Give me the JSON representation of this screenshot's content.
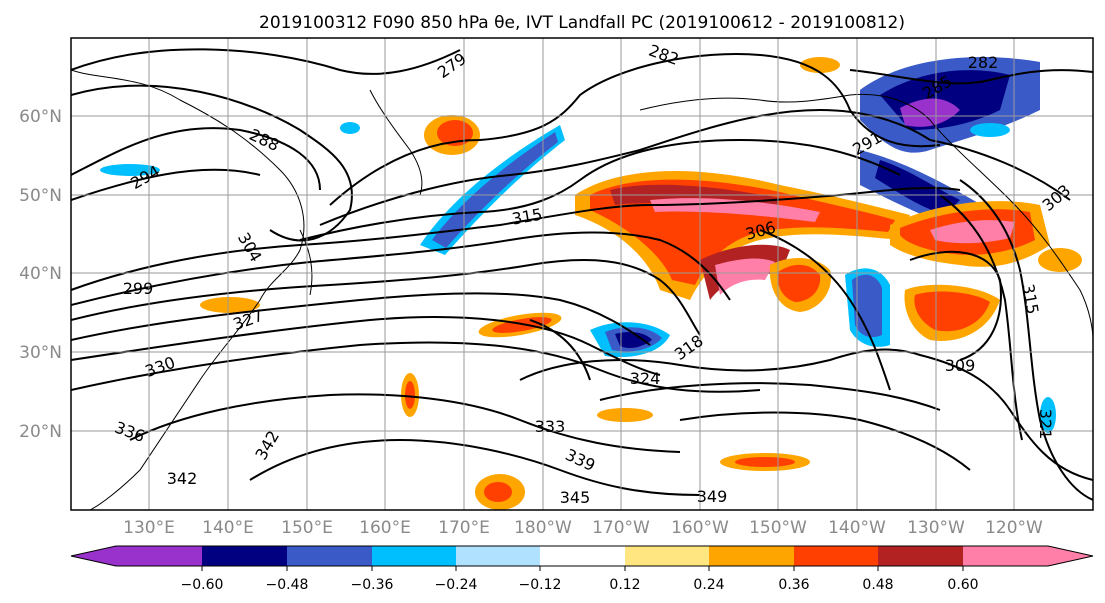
{
  "title": "2019100312 F090 850 hPa θe, IVT Landfall PC (2019100612 - 2019100812)",
  "map": {
    "lat_labels": [
      "60°N",
      "50°N",
      "40°N",
      "30°N",
      "20°N"
    ],
    "lon_labels": [
      "130°E",
      "140°E",
      "150°E",
      "160°E",
      "170°E",
      "180°W",
      "170°W",
      "160°W",
      "150°W",
      "140°W",
      "130°W",
      "120°W"
    ],
    "contour_labels": [
      "279",
      "282",
      "288",
      "294",
      "291",
      "282",
      "285",
      "303",
      "315",
      "306",
      "309",
      "318",
      "324",
      "333",
      "339",
      "345",
      "349",
      "342",
      "336",
      "330",
      "327",
      "321",
      "315",
      "299",
      "304"
    ],
    "colors": {
      "neg_060": "#9932cc",
      "neg_048": "#000080",
      "neg_036": "#3a5bc7",
      "neg_024": "#00bfff",
      "neg_012": "#b0e2ff",
      "neutral": "#ffffff",
      "pos_012": "#ffe680",
      "pos_024": "#ffa500",
      "pos_036": "#ff4000",
      "pos_048": "#b22222",
      "pos_060": "#ff7fa8"
    }
  },
  "colorbar": {
    "tick_labels": [
      "−0.60",
      "−0.48",
      "−0.36",
      "−0.24",
      "−0.12",
      "0.12",
      "0.24",
      "0.36",
      "0.48",
      "0.60"
    ],
    "segment_colors": [
      "#9932cc",
      "#000080",
      "#3a5bc7",
      "#00bfff",
      "#b0e2ff",
      "#ffffff",
      "#ffe680",
      "#ffa500",
      "#ff4000",
      "#b22222",
      "#ff7fa8"
    ]
  }
}
